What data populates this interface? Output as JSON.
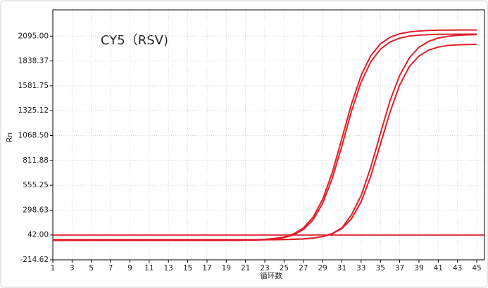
{
  "chart_data": {
    "type": "line",
    "title": "CY5（RSV)",
    "ylabel": "Rn",
    "xlabel": "循环数",
    "x": [
      1,
      2,
      3,
      4,
      5,
      6,
      7,
      8,
      9,
      10,
      11,
      12,
      13,
      14,
      15,
      16,
      17,
      18,
      19,
      20,
      21,
      22,
      23,
      24,
      25,
      26,
      27,
      28,
      29,
      30,
      31,
      32,
      33,
      34,
      35,
      36,
      37,
      38,
      39,
      40,
      41,
      42,
      43,
      44,
      45
    ],
    "series": [
      {
        "color": "#e0202a",
        "values": [
          -12,
          -12,
          -12,
          -12,
          -12,
          -12,
          -12,
          -12,
          -12,
          -12,
          -12,
          -12,
          -12,
          -12,
          -12,
          -12,
          -12,
          -12,
          -12,
          -11,
          -10,
          -8,
          -3,
          5,
          22,
          54,
          114,
          223,
          408,
          685,
          1036,
          1395,
          1690,
          1893,
          2015,
          2083,
          2119,
          2138,
          2148,
          2153,
          2156,
          2157,
          2158,
          2158,
          2158
        ]
      },
      {
        "color": "#e0202a",
        "values": [
          -14,
          -14,
          -14,
          -14,
          -14,
          -14,
          -14,
          -14,
          -14,
          -14,
          -14,
          -14,
          -14,
          -14,
          -14,
          -14,
          -14,
          -14,
          -14,
          -14,
          -13,
          -11,
          -7,
          0,
          15,
          44,
          98,
          196,
          366,
          625,
          960,
          1320,
          1620,
          1830,
          1960,
          2035,
          2075,
          2095,
          2105,
          2110,
          2113,
          2114,
          2115,
          2115,
          2115
        ]
      },
      {
        "color": "#e0202a",
        "values": [
          -8,
          -8,
          -8,
          -8,
          -8,
          -8,
          -8,
          -8,
          -8,
          -8,
          -8,
          -8,
          -8,
          -8,
          -8,
          -8,
          -8,
          -8,
          -8,
          -8,
          -8,
          -8,
          -8,
          -7,
          -6,
          -4,
          1,
          9,
          26,
          57,
          115,
          250,
          450,
          740,
          1090,
          1430,
          1690,
          1870,
          1980,
          2040,
          2075,
          2093,
          2103,
          2108,
          2110
        ]
      },
      {
        "color": "#e0202a",
        "values": [
          -6,
          -6,
          -6,
          -6,
          -6,
          -6,
          -6,
          -6,
          -6,
          -6,
          -6,
          -6,
          -6,
          -6,
          -6,
          -6,
          -6,
          -6,
          -6,
          -6,
          -6,
          -6,
          -6,
          -5,
          -4,
          -2,
          2,
          10,
          25,
          54,
          108,
          210,
          385,
          650,
          980,
          1310,
          1590,
          1780,
          1890,
          1950,
          1982,
          1998,
          2005,
          2008,
          2010
        ]
      }
    ],
    "threshold": 42,
    "threshold_color": "#e0202a",
    "xlim": [
      1,
      45.8
    ],
    "xticks": [
      1,
      3,
      5,
      7,
      9,
      11,
      13,
      15,
      17,
      19,
      21,
      23,
      25,
      27,
      29,
      31,
      33,
      35,
      37,
      39,
      41,
      43,
      45
    ],
    "ylim": [
      -214.62,
      2366
    ],
    "yticks": [
      -214.62,
      {
        "value": 42,
        "label": "42.00"
      },
      298.63,
      555.25,
      811.88,
      {
        "value": 1068.5,
        "label": "1068.50"
      },
      1325.12,
      1581.75,
      1838.37,
      {
        "value": 2095,
        "label": "2095.00"
      }
    ],
    "grid": true
  }
}
